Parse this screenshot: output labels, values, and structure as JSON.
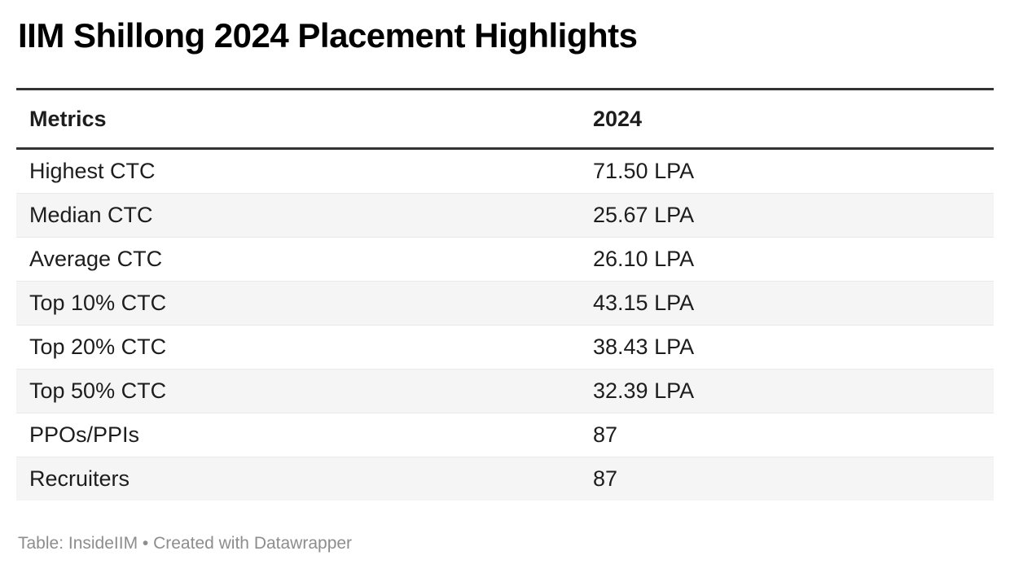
{
  "title": "IIM Shillong 2024 Placement Highlights",
  "chart_data": {
    "type": "table",
    "title": "IIM Shillong 2024 Placement Highlights",
    "columns": [
      "Metrics",
      "2024"
    ],
    "rows": [
      [
        "Highest CTC",
        "71.50 LPA"
      ],
      [
        "Median CTC",
        "25.67 LPA"
      ],
      [
        "Average CTC",
        "26.10 LPA"
      ],
      [
        "Top 10% CTC",
        "43.15 LPA"
      ],
      [
        "Top 20% CTC",
        "38.43 LPA"
      ],
      [
        "Top 50% CTC",
        "32.39 LPA"
      ],
      [
        "PPOs/PPIs",
        "87"
      ],
      [
        "Recruiters",
        "87"
      ]
    ],
    "layout": {
      "striped": true,
      "striped_rows": "even",
      "header_rules": "top-and-bottom",
      "column_alignment": [
        "left",
        "left"
      ]
    }
  },
  "footer": {
    "prefix": "Table: InsideIIM • ",
    "credit": "Created with Datawrapper"
  },
  "colors": {
    "background": "#ffffff",
    "title": "#000000",
    "body_text": "#1d1d1d",
    "header_rule": "#333333",
    "row_stripe": "#f5f5f5",
    "row_divider": "#e9e9e9",
    "footer_text": "#8d8d8d"
  }
}
